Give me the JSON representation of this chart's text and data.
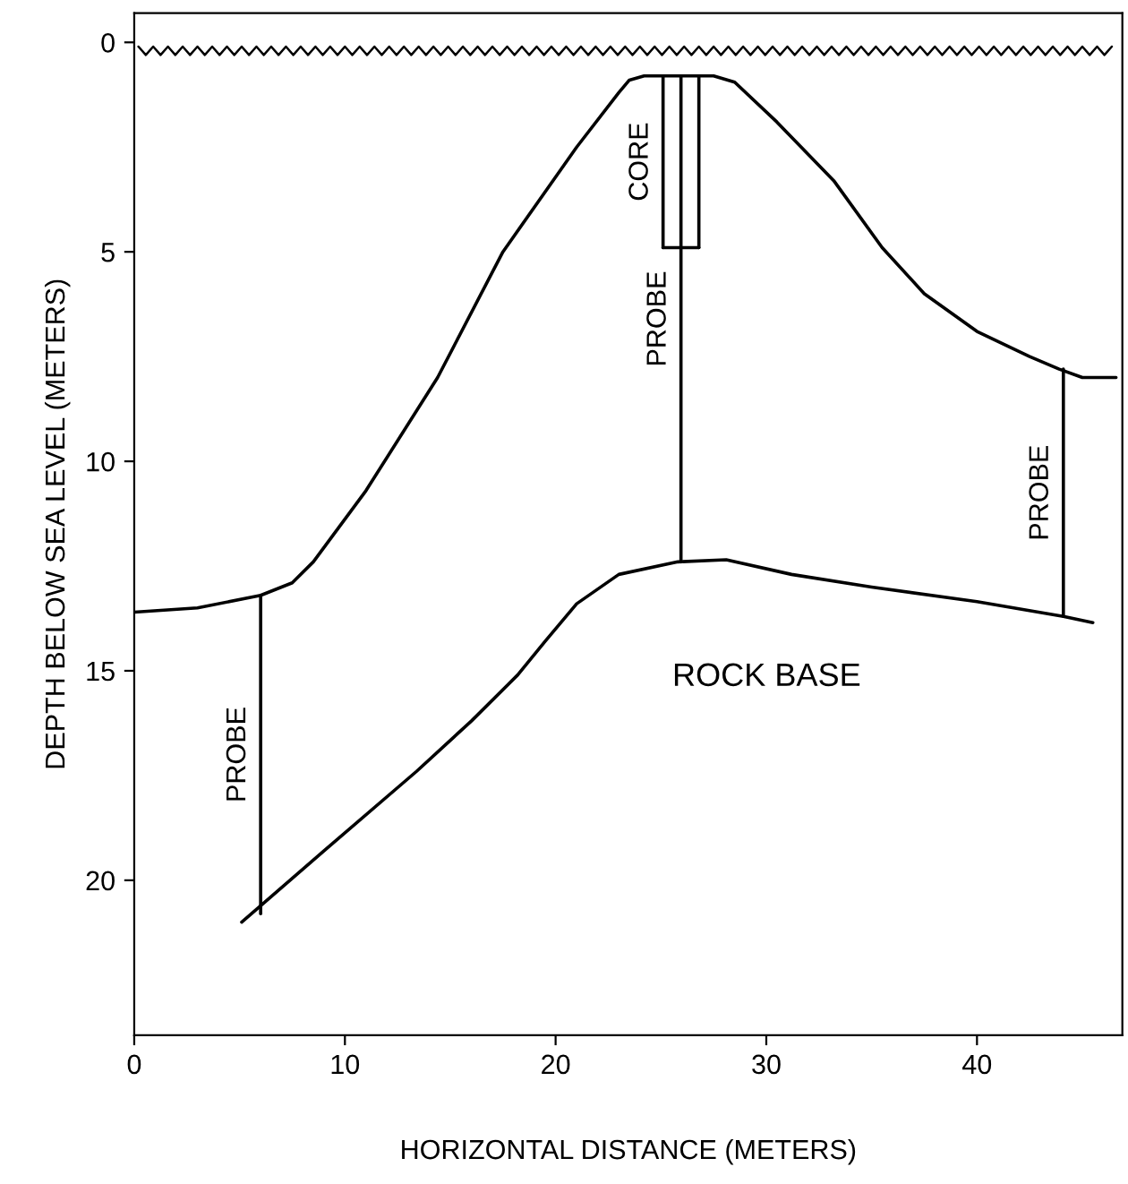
{
  "chart_data": {
    "type": "line",
    "xlabel": "HORIZONTAL DISTANCE (METERS)",
    "ylabel": "DEPTH BELOW SEA LEVEL (METERS)",
    "xlim": [
      0,
      46.9
    ],
    "ylim": [
      23.7,
      -0.7
    ],
    "xticks": [
      0,
      10,
      20,
      30,
      40
    ],
    "yticks": [
      0,
      5,
      10,
      15,
      20
    ],
    "grid": false,
    "legend": false,
    "marker": "none",
    "line_style": "solid",
    "series": [
      {
        "color": "#000000",
        "x": [
          0.2,
          0.55,
          0.9,
          1.25,
          1.6,
          1.95,
          2.3,
          2.65,
          3.0,
          3.35,
          3.7,
          4.05,
          4.4,
          4.75,
          5.1,
          5.45,
          5.8,
          6.15,
          6.5,
          6.85,
          7.2,
          7.55,
          7.9,
          8.25,
          8.6,
          8.95,
          9.3,
          9.65,
          10.0,
          10.35,
          10.7,
          11.05,
          11.4,
          11.75,
          12.1,
          12.45,
          12.8,
          13.15,
          13.5,
          13.85,
          14.2,
          14.55,
          14.9,
          15.25,
          15.6,
          15.95,
          16.3,
          16.65,
          17.0,
          17.35,
          17.7,
          18.05,
          18.4,
          18.75,
          19.1,
          19.45,
          19.8,
          20.15,
          20.5,
          20.85,
          21.2,
          21.55,
          21.9,
          22.25,
          22.6,
          22.95,
          23.3,
          23.65,
          24.0,
          24.35,
          24.7,
          25.05,
          25.4,
          25.75,
          26.1,
          26.45,
          26.8,
          27.15,
          27.5,
          27.85,
          28.2,
          28.55,
          28.9,
          29.25,
          29.6,
          29.95,
          30.3,
          30.65,
          31.0,
          31.35,
          31.7,
          32.05,
          32.4,
          32.75,
          33.1,
          33.45,
          33.8,
          34.15,
          34.5,
          34.85,
          35.2,
          35.55,
          35.9,
          36.25,
          36.6,
          36.95,
          37.3,
          37.65,
          38.0,
          38.35,
          38.7,
          39.05,
          39.4,
          39.75,
          40.1,
          40.45,
          40.8,
          41.15,
          41.5,
          41.85,
          42.2,
          42.55,
          42.9,
          43.25,
          43.6,
          43.95,
          44.3,
          44.65,
          45.0,
          45.35,
          45.7,
          46.05,
          46.4
        ],
        "values": [
          0.1,
          0.3,
          0.1,
          0.3,
          0.1,
          0.3,
          0.1,
          0.3,
          0.1,
          0.3,
          0.1,
          0.3,
          0.1,
          0.3,
          0.1,
          0.3,
          0.1,
          0.3,
          0.1,
          0.3,
          0.1,
          0.3,
          0.1,
          0.3,
          0.1,
          0.3,
          0.1,
          0.3,
          0.1,
          0.3,
          0.1,
          0.3,
          0.1,
          0.3,
          0.1,
          0.3,
          0.1,
          0.3,
          0.1,
          0.3,
          0.1,
          0.3,
          0.1,
          0.3,
          0.1,
          0.3,
          0.1,
          0.3,
          0.1,
          0.3,
          0.1,
          0.3,
          0.1,
          0.3,
          0.1,
          0.3,
          0.1,
          0.3,
          0.1,
          0.3,
          0.1,
          0.3,
          0.1,
          0.3,
          0.1,
          0.3,
          0.1,
          0.3,
          0.1,
          0.3,
          0.1,
          0.3,
          0.1,
          0.3,
          0.1,
          0.3,
          0.1,
          0.3,
          0.1,
          0.3,
          0.1,
          0.3,
          0.1,
          0.3,
          0.1,
          0.3,
          0.1,
          0.3,
          0.1,
          0.3,
          0.1,
          0.3,
          0.1,
          0.3,
          0.1,
          0.3,
          0.1,
          0.3,
          0.1,
          0.3,
          0.1,
          0.3,
          0.1,
          0.3,
          0.1,
          0.3,
          0.1,
          0.3,
          0.1,
          0.3,
          0.1,
          0.3,
          0.1,
          0.3,
          0.1,
          0.3,
          0.1,
          0.3,
          0.1,
          0.3,
          0.1,
          0.3,
          0.1,
          0.3,
          0.1,
          0.3,
          0.1,
          0.3,
          0.1,
          0.3,
          0.1,
          0.3,
          0.1
        ]
      },
      {
        "color": "#000000",
        "x": [
          0,
          3,
          6,
          7.5,
          8.5,
          11,
          14.4,
          17.5,
          21,
          23,
          23.5,
          24.2,
          27.5,
          28.5,
          30.5,
          33.2,
          35.5,
          37.5,
          40,
          42.5,
          43.9,
          45,
          46.6
        ],
        "values": [
          13.6,
          13.5,
          13.2,
          12.9,
          12.4,
          10.7,
          8.0,
          5.0,
          2.5,
          1.2,
          0.9,
          0.8,
          0.8,
          0.95,
          1.9,
          3.3,
          4.9,
          6.0,
          6.9,
          7.5,
          7.8,
          8.0,
          8.0
        ]
      },
      {
        "color": "#000000",
        "x": [
          5.1,
          9,
          13.4,
          16,
          18.2,
          19.5,
          21,
          23,
          25.8,
          28.1,
          31.2,
          35,
          40,
          44.1,
          45.5
        ],
        "values": [
          21.0,
          19.3,
          17.4,
          16.2,
          15.1,
          14.3,
          13.4,
          12.7,
          12.4,
          12.35,
          12.7,
          13.0,
          13.35,
          13.7,
          13.85
        ]
      },
      {
        "name": "PROBE",
        "color": "#000000",
        "x": [
          6.0,
          6.0
        ],
        "values": [
          13.2,
          20.8
        ]
      },
      {
        "name": "PROBE",
        "color": "#000000",
        "x": [
          25.95,
          25.95
        ],
        "values": [
          0.8,
          12.4
        ]
      },
      {
        "name": "PROBE",
        "color": "#000000",
        "x": [
          44.1,
          44.1
        ],
        "values": [
          7.8,
          13.7
        ]
      },
      {
        "name": "CORE",
        "color": "#000000",
        "x": [
          25.1,
          25.1
        ],
        "values": [
          0.8,
          4.9
        ]
      },
      {
        "color": "#000000",
        "x": [
          26.8,
          26.8
        ],
        "values": [
          0.8,
          4.9
        ]
      },
      {
        "color": "#000000",
        "x": [
          25.1,
          26.8
        ],
        "values": [
          4.9,
          4.9
        ]
      }
    ],
    "annotations": [
      "ROCK BASE"
    ]
  }
}
